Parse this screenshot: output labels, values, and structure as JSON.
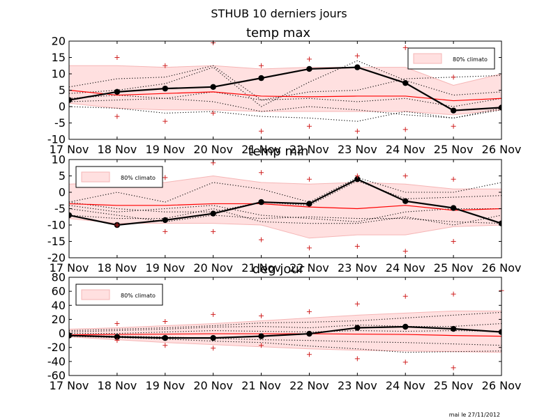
{
  "page": {
    "title": "STHUB 10 derniers jours",
    "footer": "mai le 27/11/2012"
  },
  "colors": {
    "band": "#ffe0e0",
    "band_edge": "#f5b5b5",
    "median": "#ff0000",
    "extreme": "#d02020",
    "observed": "#000000",
    "members": "#000000"
  },
  "chart_data": [
    {
      "type": "line",
      "title": "temp max",
      "x": [
        "17 Nov",
        "18 Nov",
        "19 Nov",
        "20 Nov",
        "21 Nov",
        "22 Nov",
        "23 Nov",
        "24 Nov",
        "25 Nov",
        "26 Nov"
      ],
      "ylim": [
        -10,
        20
      ],
      "yticks": [
        -10,
        -5,
        0,
        5,
        10,
        15,
        20
      ],
      "legend": {
        "label": "80% climato",
        "position": "top-right"
      },
      "band_low": [
        1,
        -0.5,
        -1,
        -1,
        -1.5,
        -1.5,
        -1.5,
        -1.5,
        -2.5,
        -1
      ],
      "band_high": [
        12.5,
        12.5,
        12,
        12.5,
        11.5,
        12,
        12,
        12,
        6.5,
        10
      ],
      "median": [
        5,
        3.5,
        4,
        4.5,
        3.2,
        3,
        3.2,
        3.2,
        1.8,
        2.5
      ],
      "extremes": [
        {
          "x": 1,
          "y": 15
        },
        {
          "x": 1,
          "y": -3
        },
        {
          "x": 2,
          "y": 12.5
        },
        {
          "x": 2,
          "y": -4.5
        },
        {
          "x": 3,
          "y": 19.5
        },
        {
          "x": 3,
          "y": -2
        },
        {
          "x": 4,
          "y": 12.5
        },
        {
          "x": 4,
          "y": -7.5
        },
        {
          "x": 5,
          "y": 14.5
        },
        {
          "x": 5,
          "y": -6
        },
        {
          "x": 6,
          "y": 15.5
        },
        {
          "x": 6,
          "y": -7.5
        },
        {
          "x": 7,
          "y": 18
        },
        {
          "x": 7,
          "y": -7
        },
        {
          "x": 8,
          "y": 9
        },
        {
          "x": 8,
          "y": -6
        }
      ],
      "members": [
        [
          6,
          8.5,
          9,
          12.5,
          2,
          4.5,
          5,
          8.5,
          9,
          9.5
        ],
        [
          4,
          5,
          7,
          12,
          0,
          7.5,
          14,
          8,
          3.5,
          4.5
        ],
        [
          2.5,
          3.5,
          2.5,
          4.5,
          2,
          2.5,
          1.5,
          2.5,
          0,
          2.5
        ],
        [
          1.5,
          2,
          2.5,
          1.5,
          -1.5,
          0,
          -1,
          -2.5,
          -3.5,
          -0.5
        ],
        [
          0,
          -0.5,
          -2,
          -1.5,
          -3,
          -3.5,
          -4.5,
          -1.5,
          -3.5,
          -1
        ]
      ],
      "observed": [
        2,
        4.5,
        5.5,
        6,
        8.7,
        11.5,
        12,
        7.2,
        -1.2,
        -0.3
      ]
    },
    {
      "type": "line",
      "title": "temp min",
      "x": [
        "17 Nov",
        "18 Nov",
        "19 Nov",
        "20 Nov",
        "21 Nov",
        "22 Nov",
        "23 Nov",
        "24 Nov",
        "25 Nov",
        "26 Nov"
      ],
      "ylim": [
        -20,
        10
      ],
      "yticks": [
        -20,
        -15,
        -10,
        -5,
        0,
        5,
        10
      ],
      "legend": {
        "label": "80% climato",
        "position": "top-left"
      },
      "band_low": [
        -8,
        -9.5,
        -9.5,
        -9.5,
        -10,
        -14,
        -13,
        -13,
        -10.5,
        -10
      ],
      "band_high": [
        2.5,
        3,
        3,
        5,
        3,
        2.5,
        3,
        2.5,
        1,
        1
      ],
      "median": [
        -3.5,
        -4,
        -4,
        -3.5,
        -3.5,
        -4.5,
        -5,
        -4,
        -5.5,
        -5
      ],
      "extremes": [
        {
          "x": 1,
          "y": 6
        },
        {
          "x": 1,
          "y": -10
        },
        {
          "x": 2,
          "y": 4.5
        },
        {
          "x": 2,
          "y": -12
        },
        {
          "x": 3,
          "y": 9
        },
        {
          "x": 3,
          "y": -12
        },
        {
          "x": 4,
          "y": 6
        },
        {
          "x": 4,
          "y": -14.5
        },
        {
          "x": 5,
          "y": 4
        },
        {
          "x": 5,
          "y": -17
        },
        {
          "x": 6,
          "y": 5
        },
        {
          "x": 6,
          "y": -16.5
        },
        {
          "x": 7,
          "y": 5
        },
        {
          "x": 7,
          "y": -18
        },
        {
          "x": 8,
          "y": 4
        },
        {
          "x": 8,
          "y": -15
        }
      ],
      "members": [
        [
          -3,
          0,
          -3,
          3,
          1,
          -3,
          4.5,
          0,
          0,
          3
        ],
        [
          -3,
          -5,
          -6,
          -6,
          -3,
          -4,
          3.5,
          -2,
          -1.5,
          -1
        ],
        [
          -4,
          -6,
          -5,
          -4,
          -7,
          -8,
          -9,
          -6,
          -5,
          -5
        ],
        [
          -5,
          -7,
          -9,
          -7,
          -8,
          -7.5,
          -8,
          -8,
          -9,
          -9.5
        ],
        [
          -7,
          -8,
          -8,
          -5,
          -9,
          -9.5,
          -9.5,
          -7.5,
          -10,
          -7
        ]
      ],
      "observed": [
        -7,
        -10,
        -8.5,
        -6.5,
        -3,
        -3.5,
        4,
        -2.7,
        -4.8,
        -9.5
      ]
    },
    {
      "type": "line",
      "title": "deg jour",
      "x": [
        "17 Nov",
        "18 Nov",
        "19 Nov",
        "20 Nov",
        "21 Nov",
        "22 Nov",
        "23 Nov",
        "24 Nov",
        "25 Nov",
        "26 Nov"
      ],
      "ylim": [
        -60,
        80
      ],
      "yticks": [
        -60,
        -40,
        -20,
        0,
        20,
        40,
        60,
        80
      ],
      "legend": {
        "label": "80% climato",
        "position": "top-left"
      },
      "band_low": [
        -5,
        -9,
        -13,
        -16,
        -19,
        -22,
        -24,
        -25,
        -26,
        -27
      ],
      "band_high": [
        6,
        8,
        11,
        14,
        18,
        22,
        26,
        29,
        32,
        32
      ],
      "median": [
        -2,
        -1.5,
        -1,
        -0.5,
        -0.5,
        -0.5,
        -1,
        -1.5,
        -3,
        -4
      ],
      "extremes": [
        {
          "x": 1,
          "y": 14
        },
        {
          "x": 1,
          "y": -10
        },
        {
          "x": 2,
          "y": 17
        },
        {
          "x": 2,
          "y": -17
        },
        {
          "x": 3,
          "y": 27
        },
        {
          "x": 3,
          "y": -21
        },
        {
          "x": 4,
          "y": 25
        },
        {
          "x": 4,
          "y": -17
        },
        {
          "x": 5,
          "y": 31
        },
        {
          "x": 5,
          "y": -30
        },
        {
          "x": 6,
          "y": 42
        },
        {
          "x": 6,
          "y": -36
        },
        {
          "x": 7,
          "y": 53
        },
        {
          "x": 7,
          "y": -41
        },
        {
          "x": 8,
          "y": 56
        },
        {
          "x": 8,
          "y": -49
        },
        {
          "x": 9,
          "y": 61
        }
      ],
      "members": [
        [
          4,
          6,
          8,
          11,
          15,
          16,
          18,
          22,
          26,
          30
        ],
        [
          2,
          4,
          6,
          9,
          10,
          8,
          12,
          10,
          10,
          14
        ],
        [
          0,
          0,
          2,
          4,
          3,
          2,
          4,
          3,
          4,
          3
        ],
        [
          -3,
          -4,
          -5,
          -7,
          -9,
          -10,
          -12,
          -13,
          -15,
          -17
        ],
        [
          -4,
          -6,
          -8,
          -11,
          -13,
          -18,
          -22,
          -27,
          -26,
          -25
        ]
      ],
      "observed": [
        -3,
        -5,
        -6.5,
        -6.5,
        -4,
        -0.5,
        8,
        9.5,
        6.5,
        2
      ]
    }
  ]
}
